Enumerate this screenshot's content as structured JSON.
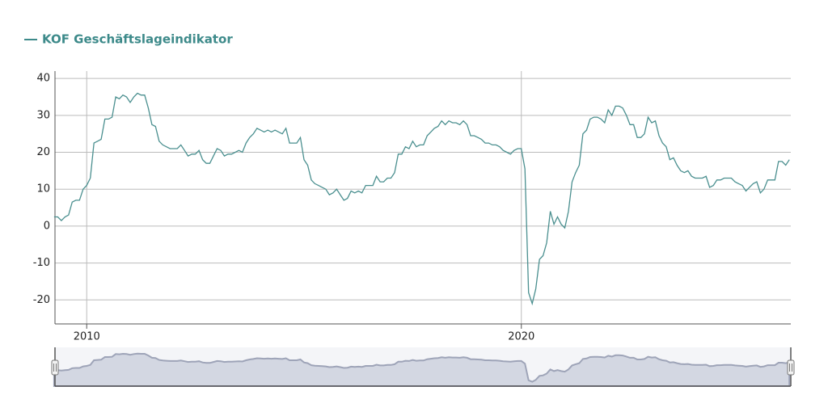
{
  "chart_data": {
    "type": "line",
    "xlim": [
      2009.27,
      2026.2
    ],
    "xticks": [
      2010,
      2020
    ],
    "ylim": [
      -26.5,
      42
    ],
    "yticks": [
      -20,
      -10,
      0,
      10,
      20,
      30,
      40
    ],
    "grid": true,
    "legend": "top-left",
    "x": [
      2009.25,
      2009.333,
      2009.417,
      2009.5,
      2009.583,
      2009.667,
      2009.75,
      2009.833,
      2009.917,
      2010.0,
      2010.083,
      2010.167,
      2010.25,
      2010.333,
      2010.417,
      2010.5,
      2010.583,
      2010.667,
      2010.75,
      2010.833,
      2010.917,
      2011.0,
      2011.083,
      2011.167,
      2011.25,
      2011.333,
      2011.417,
      2011.5,
      2011.583,
      2011.667,
      2011.75,
      2011.833,
      2011.917,
      2012.0,
      2012.083,
      2012.167,
      2012.25,
      2012.333,
      2012.417,
      2012.5,
      2012.583,
      2012.667,
      2012.75,
      2012.833,
      2012.917,
      2013.0,
      2013.083,
      2013.167,
      2013.25,
      2013.333,
      2013.417,
      2013.5,
      2013.583,
      2013.667,
      2013.75,
      2013.833,
      2013.917,
      2014.0,
      2014.083,
      2014.167,
      2014.25,
      2014.333,
      2014.417,
      2014.5,
      2014.583,
      2014.667,
      2014.75,
      2014.833,
      2014.917,
      2015.0,
      2015.083,
      2015.167,
      2015.25,
      2015.333,
      2015.417,
      2015.5,
      2015.583,
      2015.667,
      2015.75,
      2015.833,
      2015.917,
      2016.0,
      2016.083,
      2016.167,
      2016.25,
      2016.333,
      2016.417,
      2016.5,
      2016.583,
      2016.667,
      2016.75,
      2016.833,
      2016.917,
      2017.0,
      2017.083,
      2017.167,
      2017.25,
      2017.333,
      2017.417,
      2017.5,
      2017.583,
      2017.667,
      2017.75,
      2017.833,
      2017.917,
      2018.0,
      2018.083,
      2018.167,
      2018.25,
      2018.333,
      2018.417,
      2018.5,
      2018.583,
      2018.667,
      2018.75,
      2018.833,
      2018.917,
      2019.0,
      2019.083,
      2019.167,
      2019.25,
      2019.333,
      2019.417,
      2019.5,
      2019.583,
      2019.667,
      2019.75,
      2019.833,
      2019.917,
      2020.0,
      2020.083,
      2020.167,
      2020.25,
      2020.333,
      2020.417,
      2020.5,
      2020.583,
      2020.667,
      2020.75,
      2020.833,
      2020.917,
      2021.0,
      2021.083,
      2021.167,
      2021.25,
      2021.333,
      2021.417,
      2021.5,
      2021.583,
      2021.667,
      2021.75,
      2021.833,
      2021.917,
      2022.0,
      2022.083,
      2022.167,
      2022.25,
      2022.333,
      2022.417,
      2022.5,
      2022.583,
      2022.667,
      2022.75,
      2022.833,
      2022.917,
      2023.0,
      2023.083,
      2023.167,
      2023.25,
      2023.333,
      2023.417,
      2023.5,
      2023.583,
      2023.667,
      2023.75,
      2023.833,
      2023.917,
      2024.0,
      2024.083,
      2024.167,
      2024.25,
      2024.333,
      2024.417,
      2024.5,
      2024.583,
      2024.667,
      2024.75,
      2024.833,
      2024.917,
      2025.0,
      2025.083,
      2025.167,
      2025.25,
      2025.333,
      2025.417,
      2025.5,
      2025.583,
      2025.667,
      2025.75,
      2025.833,
      2025.917,
      2026.0,
      2026.083,
      2026.167
    ],
    "series": [
      {
        "name": "KOF Geschäftslageindikator",
        "color": "#4a8f8f",
        "values": [
          2.5,
          2.5,
          1.5,
          2.5,
          3,
          6.5,
          7,
          7,
          10,
          11,
          13,
          22.5,
          23,
          23.5,
          29,
          29,
          29.5,
          35,
          34.5,
          35.5,
          35,
          33.5,
          35,
          36,
          35.5,
          35.5,
          32,
          27.5,
          27,
          23,
          22,
          21.5,
          21,
          21,
          21,
          22,
          20.5,
          19,
          19.5,
          19.5,
          20.5,
          18,
          17,
          17,
          19,
          21,
          20.5,
          19,
          19.5,
          19.5,
          20,
          20.5,
          20,
          22.5,
          24,
          25,
          26.5,
          26,
          25.5,
          26,
          25.5,
          26,
          25.5,
          25,
          26.5,
          22.5,
          22.5,
          22.5,
          24,
          18,
          16.5,
          12.5,
          11.5,
          11,
          10.5,
          10,
          8.5,
          9,
          10,
          8.5,
          7,
          7.5,
          9.5,
          9,
          9.5,
          9,
          11,
          11,
          11,
          13.5,
          12,
          12,
          13,
          13,
          14.5,
          19.5,
          19.5,
          21.5,
          21,
          23,
          21.5,
          22,
          22,
          24.5,
          25.5,
          26.5,
          27,
          28.5,
          27.5,
          28.5,
          28,
          28,
          27.5,
          28.5,
          27.5,
          24.5,
          24.5,
          24,
          23.5,
          22.5,
          22.5,
          22,
          22,
          21.5,
          20.5,
          20,
          19.5,
          20.5,
          21,
          21,
          15.5,
          -18,
          -21,
          -17,
          -9,
          -8,
          -4.5,
          4,
          0.5,
          2.5,
          0.5,
          -0.5,
          4,
          12,
          14.5,
          16.5,
          25,
          26,
          29,
          29.5,
          29.5,
          29,
          28,
          31.5,
          30,
          32.5,
          32.5,
          32,
          30,
          27.5,
          27.5,
          24,
          24,
          25,
          29.5,
          28,
          28.5,
          24.5,
          22.5,
          21.5,
          18,
          18.5,
          16.5,
          15,
          14.5,
          15,
          13.5,
          13,
          13,
          13,
          13.5,
          10.5,
          11,
          12.5,
          12.5,
          13,
          13,
          13,
          12,
          11.5,
          11,
          9.5,
          10.5,
          11.5,
          12,
          9,
          10,
          12.5,
          12.5,
          12.5,
          17.5,
          17.5,
          16.5,
          18
        ]
      }
    ]
  }
}
